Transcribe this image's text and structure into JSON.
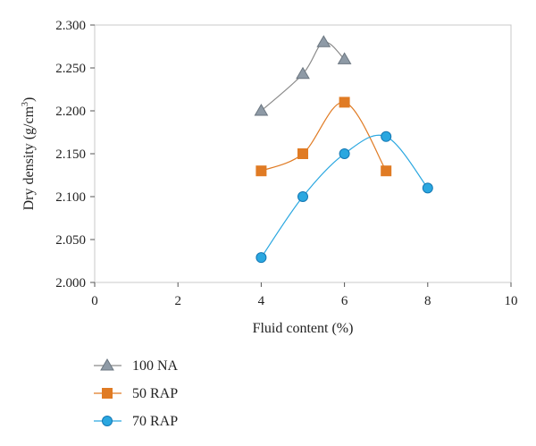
{
  "chart_data": {
    "type": "line",
    "xlabel": "Fluid content (%)",
    "ylabel": "Dry density (g/cm",
    "ylabel_sup": "3",
    "ylabel_close": ")",
    "xlim": [
      0,
      10
    ],
    "ylim": [
      2.0,
      2.3
    ],
    "x_ticks": [
      0,
      2,
      4,
      6,
      8,
      10
    ],
    "x_tick_labels": [
      "0",
      "2",
      "4",
      "6",
      "8",
      "10"
    ],
    "y_ticks": [
      2.0,
      2.05,
      2.1,
      2.15,
      2.2,
      2.25,
      2.3
    ],
    "y_tick_labels": [
      "2.000",
      "2.050",
      "2.100",
      "2.150",
      "2.200",
      "2.250",
      "2.300"
    ],
    "grid": false,
    "legend_position": "bottom-left",
    "series": [
      {
        "name": "100 NA",
        "marker": "triangle",
        "color": "#8e9aa6",
        "marker_color": "#8e9aa6",
        "line_color": "#8a8a8a",
        "x": [
          4,
          5,
          5.5,
          6
        ],
        "y": [
          2.2,
          2.243,
          2.28,
          2.26
        ]
      },
      {
        "name": "50 RAP",
        "marker": "square",
        "color": "#e07b24",
        "marker_color": "#e07b24",
        "line_color": "#e07b24",
        "x": [
          4,
          5,
          6,
          7
        ],
        "y": [
          2.13,
          2.15,
          2.21,
          2.13
        ]
      },
      {
        "name": "70 RAP",
        "marker": "circle",
        "color": "#2aa7e0",
        "marker_color": "#2aa7e0",
        "line_color": "#2aa7e0",
        "x": [
          4,
          5,
          6,
          7,
          8
        ],
        "y": [
          2.029,
          2.1,
          2.15,
          2.17,
          2.11
        ]
      }
    ]
  }
}
